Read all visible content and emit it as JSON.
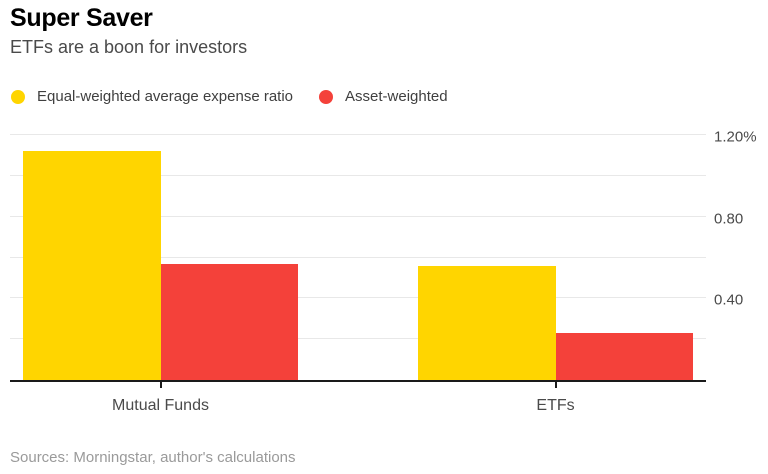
{
  "header": {
    "title": "Super Saver",
    "subtitle": "ETFs are a boon for investors"
  },
  "footer": {
    "source": "Sources: Morningstar, author's calculations"
  },
  "colors": {
    "equal_weighted": "#FFD500",
    "asset_weighted": "#F4413A",
    "axis_line": "#1a1a1a",
    "gridline": "#e8e8e8"
  },
  "chart_data": {
    "type": "bar",
    "title": "Super Saver",
    "subtitle": "ETFs are a boon for investors",
    "source": "Sources: Morningstar, author's calculations",
    "categories": [
      "Mutual Funds",
      "ETFs"
    ],
    "series": [
      {
        "name": "Equal-weighted average expense ratio",
        "color": "#FFD500",
        "values": [
          1.12,
          0.56
        ]
      },
      {
        "name": "Asset-weighted",
        "color": "#F4413A",
        "values": [
          0.57,
          0.23
        ]
      }
    ],
    "unit": "%",
    "xlabel": "",
    "ylabel": "",
    "ylim": [
      0,
      1.2
    ],
    "grid": true,
    "legend_position": "top-left",
    "y_gridlines": [
      0.2,
      0.4,
      0.6,
      0.8,
      1.0,
      1.2
    ],
    "y_tick_labels": [
      {
        "value": 1.2,
        "label": "1.20%"
      },
      {
        "value": 0.8,
        "label": "0.80"
      },
      {
        "value": 0.4,
        "label": "0.40"
      }
    ]
  }
}
